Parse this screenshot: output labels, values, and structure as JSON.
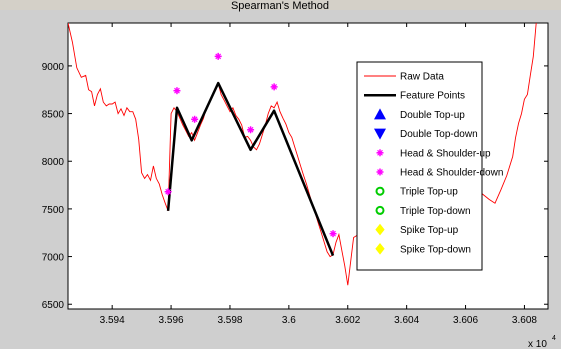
{
  "window": {
    "title": "Spearman's Method"
  },
  "colors": {
    "title_bar": "#d4d0c8",
    "figure_bg": "#cfcfcf",
    "plot_bg": "#ffffff",
    "raw": "#ff0000",
    "feature": "#000000",
    "hs": "#ff00ff",
    "double": "#0000ff",
    "triple": "#00cc00",
    "spike": "#ffff00"
  },
  "chart_data": {
    "type": "line",
    "title": "",
    "xlabel": "",
    "ylabel": "",
    "x_exponent_label": "x 10",
    "x_exponent_power": "4",
    "xlim": [
      3.5925,
      3.6088
    ],
    "ylim": [
      6450,
      9450
    ],
    "grid": false,
    "legend_position": "top-right",
    "x_ticks": [
      {
        "value": 3.594,
        "label": "3.594"
      },
      {
        "value": 3.596,
        "label": "3.596"
      },
      {
        "value": 3.598,
        "label": "3.598"
      },
      {
        "value": 3.6,
        "label": "3.6"
      },
      {
        "value": 3.602,
        "label": "3.602"
      },
      {
        "value": 3.604,
        "label": "3.604"
      },
      {
        "value": 3.606,
        "label": "3.606"
      },
      {
        "value": 3.608,
        "label": "3.608"
      }
    ],
    "y_ticks": [
      {
        "value": 6500,
        "label": "6500"
      },
      {
        "value": 7000,
        "label": "7000"
      },
      {
        "value": 7500,
        "label": "7500"
      },
      {
        "value": 8000,
        "label": "8000"
      },
      {
        "value": 8500,
        "label": "8500"
      },
      {
        "value": 9000,
        "label": "9000"
      }
    ],
    "legend": [
      {
        "label": "Raw Data",
        "key": "raw",
        "style": "line"
      },
      {
        "label": "Feature Points",
        "key": "feature",
        "style": "thickline"
      },
      {
        "label": "Double Top-up",
        "key": "double",
        "style": "tri-up"
      },
      {
        "label": "Double Top-down",
        "key": "double",
        "style": "tri-down"
      },
      {
        "label": "Head & Shoulder-up",
        "key": "hs",
        "style": "star"
      },
      {
        "label": "Head & Shoulder-down",
        "key": "hs",
        "style": "star"
      },
      {
        "label": "Triple Top-up",
        "key": "triple",
        "style": "circle"
      },
      {
        "label": "Triple Top-down",
        "key": "triple",
        "style": "circle"
      },
      {
        "label": "Spike Top-up",
        "key": "spike",
        "style": "diamond"
      },
      {
        "label": "Spike Top-down",
        "key": "spike",
        "style": "diamond"
      }
    ],
    "series": [
      {
        "key": "raw",
        "x": [
          3.5925,
          3.59265,
          3.5928,
          3.59295,
          3.5931,
          3.5932,
          3.5933,
          3.5934,
          3.5935,
          3.5936,
          3.5937,
          3.5938,
          3.5939,
          3.594,
          3.5941,
          3.5942,
          3.5943,
          3.5944,
          3.5945,
          3.5946,
          3.5947,
          3.5948,
          3.5949,
          3.595,
          3.5951,
          3.5952,
          3.5953,
          3.5954,
          3.5955,
          3.5956,
          3.5957,
          3.5958,
          3.5959,
          3.596,
          3.5961,
          3.5962,
          3.5963,
          3.5964,
          3.5965,
          3.5966,
          3.5967,
          3.5968,
          3.5969,
          3.597,
          3.5971,
          3.5972,
          3.5973,
          3.5974,
          3.5975,
          3.5976,
          3.5977,
          3.5978,
          3.5979,
          3.598,
          3.5981,
          3.5982,
          3.5983,
          3.5984,
          3.5985,
          3.5986,
          3.5987,
          3.5988,
          3.5989,
          3.599,
          3.5991,
          3.5992,
          3.5993,
          3.5994,
          3.5995,
          3.5996,
          3.5997,
          3.5998,
          3.5999,
          3.6,
          3.6001,
          3.6002,
          3.6003,
          3.6004,
          3.6005,
          3.6006,
          3.6007,
          3.6008,
          3.6009,
          3.601,
          3.6011,
          3.6012,
          3.6013,
          3.6014,
          3.6015,
          3.6016,
          3.6017,
          3.6018,
          3.6019,
          3.602,
          3.6021,
          3.6022,
          3.6023,
          3.6024,
          3.6025,
          3.6026,
          3.6027,
          3.6028,
          3.6029,
          3.603,
          3.6032,
          3.6034,
          3.6036,
          3.6038,
          3.604,
          3.6042,
          3.6044,
          3.6046,
          3.6048,
          3.605,
          3.6052,
          3.6054,
          3.6056,
          3.6058,
          3.606,
          3.6062,
          3.6064,
          3.6066,
          3.6068,
          3.607,
          3.6072,
          3.6074,
          3.6076,
          3.6077,
          3.6078,
          3.6079,
          3.608,
          3.6081,
          3.6082,
          3.6083,
          3.6084
        ],
        "y": [
          9450,
          9250,
          8980,
          8880,
          8900,
          8750,
          8730,
          8580,
          8700,
          8760,
          8620,
          8580,
          8600,
          8600,
          8620,
          8500,
          8550,
          8480,
          8560,
          8520,
          8520,
          8440,
          8230,
          7880,
          7820,
          7860,
          7800,
          7950,
          7820,
          7760,
          7650,
          7560,
          7480,
          8500,
          8560,
          8520,
          8450,
          8380,
          8320,
          8260,
          8300,
          8220,
          8300,
          8380,
          8450,
          8560,
          8620,
          8680,
          8740,
          8820,
          8700,
          8640,
          8580,
          8520,
          8560,
          8480,
          8440,
          8380,
          8250,
          8260,
          8220,
          8150,
          8120,
          8180,
          8280,
          8380,
          8500,
          8580,
          8560,
          8620,
          8520,
          8450,
          8390,
          8300,
          8250,
          8150,
          8050,
          7950,
          7850,
          7760,
          7650,
          7550,
          7450,
          7350,
          7250,
          7150,
          7050,
          7000,
          7020,
          7150,
          7230,
          7060,
          6900,
          6700,
          6950,
          7200,
          7220,
          7200,
          7350,
          7500,
          7550,
          7600,
          7650,
          7750,
          7800,
          7850,
          7900,
          7850,
          7950,
          7900,
          7950,
          7900,
          7880,
          7850,
          7880,
          7850,
          7900,
          7880,
          7860,
          7800,
          7700,
          7650,
          7600,
          7560,
          7700,
          7850,
          8050,
          8250,
          8400,
          8500,
          8650,
          8700,
          8900,
          9100,
          9450
        ]
      },
      {
        "key": "feature",
        "x": [
          3.5959,
          3.5962,
          3.5967,
          3.5976,
          3.5987,
          3.5995,
          3.6015
        ],
        "y": [
          7480,
          8560,
          8220,
          8820,
          8120,
          8530,
          7010
        ]
      },
      {
        "key": "hs",
        "x": [
          3.5959,
          3.5962,
          3.5968,
          3.5976,
          3.5987,
          3.5995,
          3.6015
        ],
        "y": [
          7680,
          8740,
          8440,
          9100,
          8330,
          8780,
          7240
        ]
      }
    ]
  }
}
